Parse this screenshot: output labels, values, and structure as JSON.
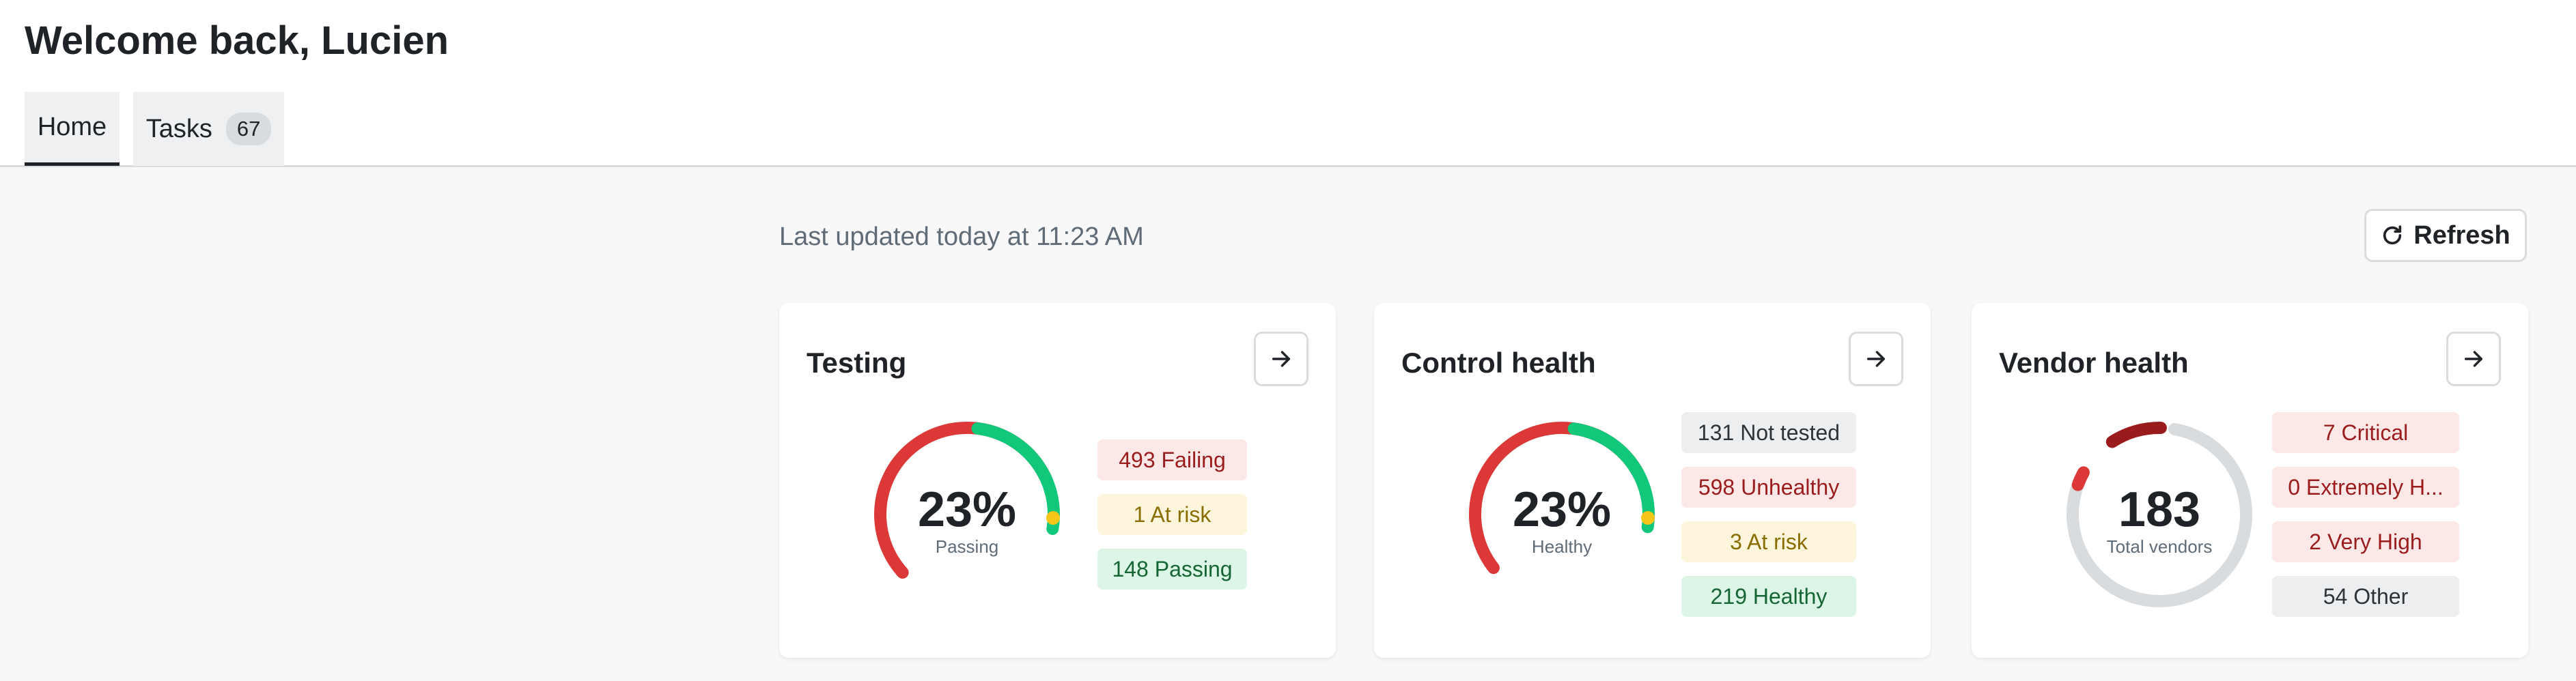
{
  "header": {
    "welcome": "Welcome back, Lucien",
    "tabs": [
      {
        "label": "Home",
        "active": true
      },
      {
        "label": "Tasks",
        "badge": "67"
      }
    ]
  },
  "toolbar": {
    "last_updated": "Last updated today at 11:23 AM",
    "refresh_label": "Refresh"
  },
  "colors": {
    "failing": "#dc3838",
    "at_risk": "#f5c518",
    "passing": "#10c77a",
    "not_tested": "#d9dcdf",
    "critical": "#991b1b"
  },
  "cards": {
    "testing": {
      "title": "Testing",
      "value": "23%",
      "label": "Passing",
      "chips": [
        "493 Failing",
        "1 At risk",
        "148 Passing"
      ]
    },
    "control": {
      "title": "Control health",
      "value": "23%",
      "label": "Healthy",
      "chips": [
        "131 Not tested",
        "598 Unhealthy",
        "3 At risk",
        "219 Healthy"
      ]
    },
    "vendor": {
      "title": "Vendor health",
      "value": "183",
      "label": "Total vendors",
      "chips": [
        "7 Critical",
        "0 Extremely H...",
        "2 Very High",
        "54 Other"
      ]
    }
  },
  "icons": {
    "refresh": "refresh-icon",
    "arrow": "arrow-right-icon"
  }
}
